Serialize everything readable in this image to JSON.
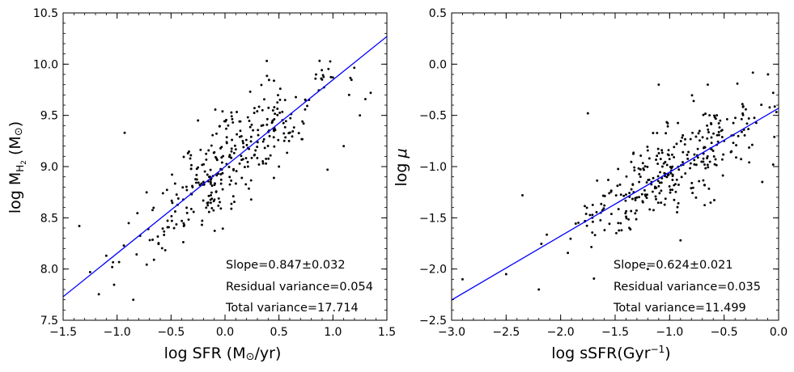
{
  "chart_data": [
    {
      "type": "scatter",
      "panel": "left",
      "xlabel": "log SFR (M⊙/yr)",
      "xlabel_main": "log SFR (M",
      "xlabel_sun": "⊙",
      "xlabel_tail": "/yr)",
      "ylabel": "log M_H2 (M⊙)",
      "ylabel_main": "log M",
      "ylabel_sub": "H",
      "ylabel_subsub": "2",
      "ylabel_tail": " (M",
      "ylabel_sun": "⊙",
      "ylabel_close": ")",
      "xlim": [
        -1.5,
        1.5
      ],
      "ylim": [
        7.5,
        10.5
      ],
      "xticks": [
        -1.5,
        -1.0,
        -0.5,
        0.0,
        0.5,
        1.0,
        1.5
      ],
      "yticks": [
        7.5,
        8.0,
        8.5,
        9.0,
        9.5,
        10.0,
        10.5
      ],
      "xtick_labels": [
        "−1.5",
        "−1.0",
        "−0.5",
        "0.0",
        "0.5",
        "1.0",
        "1.5"
      ],
      "ytick_labels": [
        "7.5",
        "8.0",
        "8.5",
        "9.0",
        "9.5",
        "10.0",
        "10.5"
      ],
      "fit": {
        "slope": 0.847,
        "intercept": 9.0,
        "color": "#0000ff"
      },
      "annotations": [
        "Slope=0.847±0.032",
        "Residual variance=0.054",
        "Total variance=17.714"
      ],
      "scatter_model": {
        "n": 330,
        "x_mean": 0.0,
        "x_sd": 0.45,
        "noise_sd": 0.232,
        "seed": 12345
      },
      "points": [
        [
          -1.35,
          8.42
        ],
        [
          -1.25,
          7.97
        ],
        [
          -1.1,
          8.13
        ],
        [
          -0.93,
          9.33
        ],
        [
          -0.85,
          7.7
        ],
        [
          -0.2,
          8.85
        ],
        [
          0.5,
          9.0
        ],
        [
          0.95,
          8.97
        ],
        [
          1.0,
          9.87
        ],
        [
          1.15,
          9.7
        ],
        [
          1.35,
          9.72
        ],
        [
          -0.25,
          9.45
        ],
        [
          1.25,
          9.5
        ],
        [
          1.1,
          9.2
        ]
      ],
      "point_color": "#000000"
    },
    {
      "type": "scatter",
      "panel": "right",
      "xlabel": "log sSFR(Gyr−1)",
      "xlabel_main": "log sSFR(Gyr",
      "xlabel_sup": "−1",
      "xlabel_close": ")",
      "ylabel": "log μ",
      "ylabel_main": "log ",
      "ylabel_mu": "μ",
      "xlim": [
        -3.0,
        0.0
      ],
      "ylim": [
        -2.5,
        0.5
      ],
      "xticks": [
        -3.0,
        -2.5,
        -2.0,
        -1.5,
        -1.0,
        -0.5,
        0.0
      ],
      "yticks": [
        -2.5,
        -2.0,
        -1.5,
        -1.0,
        -0.5,
        0.0,
        0.5
      ],
      "xtick_labels": [
        "−3.0",
        "−2.5",
        "−2.0",
        "−1.5",
        "−1.0",
        "−0.5",
        "0.0"
      ],
      "ytick_labels": [
        "−2.5",
        "−2.0",
        "−1.5",
        "−1.0",
        "−0.5",
        "0.0",
        "0.5"
      ],
      "fit": {
        "slope": 0.624,
        "intercept": -0.43,
        "color": "#0000ff"
      },
      "annotations": [
        "Slope=0.624±0.021",
        "Residual variance=0.035",
        "Total variance=11.499"
      ],
      "scatter_model": {
        "n": 330,
        "x_mean": -1.0,
        "x_sd": 0.48,
        "noise_sd": 0.187,
        "seed": 67890
      },
      "points": [
        [
          -2.9,
          -2.1
        ],
        [
          -2.5,
          -2.05
        ],
        [
          -2.2,
          -2.2
        ],
        [
          -1.75,
          -0.48
        ],
        [
          -0.65,
          -0.2
        ],
        [
          -0.05,
          -0.28
        ],
        [
          -0.15,
          -1.15
        ],
        [
          -0.05,
          -0.98
        ],
        [
          -0.9,
          -1.72
        ],
        [
          -1.2,
          -2.0
        ],
        [
          -1.1,
          -0.2
        ],
        [
          -2.35,
          -1.28
        ]
      ],
      "point_color": "#000000"
    }
  ]
}
